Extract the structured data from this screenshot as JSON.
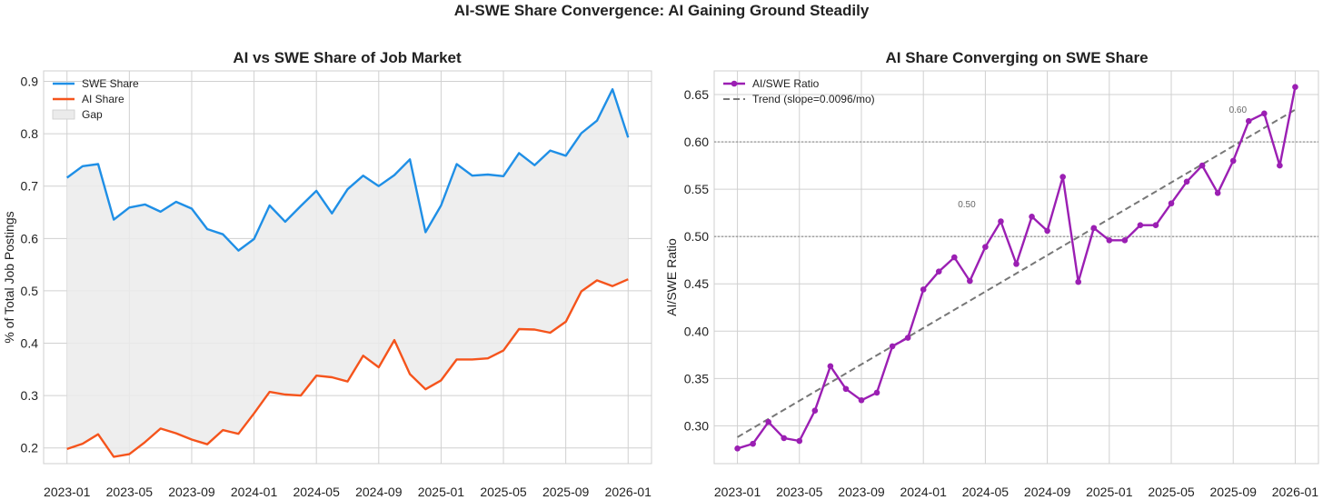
{
  "figure": {
    "suptitle": "AI-SWE Share Convergence: AI Gaining Ground Steadily"
  },
  "colors": {
    "swe": "#1f8fe6",
    "ai": "#f5541c",
    "gap": "#ebebeb",
    "ratio": "#9b1fb3",
    "trend": "#777777",
    "ref": "#8a8a8a",
    "grid": "#d0d0d0"
  },
  "chart_data": [
    {
      "type": "area",
      "title": "AI vs SWE Share of Job Market",
      "xlabel": "",
      "ylabel": "% of Total Job Postings",
      "ylim": [
        0.17,
        0.92
      ],
      "yticks": [
        0.2,
        0.3,
        0.4,
        0.5,
        0.6,
        0.7,
        0.8,
        0.9
      ],
      "ytick_labels": [
        "0.2",
        "0.3",
        "0.4",
        "0.5",
        "0.6",
        "0.7",
        "0.8",
        "0.9"
      ],
      "xlim": [
        -1.5,
        37.5
      ],
      "xticks": [
        0,
        4,
        8,
        12,
        16,
        20,
        24,
        28,
        32,
        36
      ],
      "xtick_labels": [
        "2023-01",
        "2023-05",
        "2023-09",
        "2024-01",
        "2024-05",
        "2024-09",
        "2025-01",
        "2025-05",
        "2025-09",
        "2026-01"
      ],
      "legend_position": "top-left",
      "legend": [
        "SWE Share",
        "AI Share",
        "Gap"
      ],
      "series": [
        {
          "name": "SWE Share",
          "values": [
            0.716,
            0.738,
            0.742,
            0.636,
            0.659,
            0.665,
            0.651,
            0.67,
            0.657,
            0.618,
            0.608,
            0.577,
            0.599,
            0.663,
            0.632,
            0.662,
            0.691,
            0.648,
            0.694,
            0.72,
            0.7,
            0.721,
            0.751,
            0.612,
            0.663,
            0.742,
            0.72,
            0.722,
            0.719,
            0.763,
            0.74,
            0.768,
            0.758,
            0.801,
            0.825,
            0.885,
            0.793
          ]
        },
        {
          "name": "AI Share",
          "values": [
            0.198,
            0.208,
            0.226,
            0.183,
            0.188,
            0.211,
            0.237,
            0.228,
            0.216,
            0.207,
            0.234,
            0.227,
            0.266,
            0.307,
            0.302,
            0.3,
            0.338,
            0.335,
            0.327,
            0.376,
            0.354,
            0.406,
            0.341,
            0.312,
            0.329,
            0.369,
            0.369,
            0.371,
            0.386,
            0.427,
            0.426,
            0.42,
            0.441,
            0.499,
            0.52,
            0.509,
            0.522
          ]
        }
      ]
    },
    {
      "type": "line",
      "title": "AI Share Converging on SWE Share",
      "xlabel": "",
      "ylabel": "AI/SWE Ratio",
      "ylim": [
        0.26,
        0.675
      ],
      "yticks": [
        0.3,
        0.35,
        0.4,
        0.45,
        0.5,
        0.55,
        0.6,
        0.65
      ],
      "ytick_labels": [
        "0.30",
        "0.35",
        "0.40",
        "0.45",
        "0.50",
        "0.55",
        "0.60",
        "0.65"
      ],
      "xlim": [
        -1.5,
        37.5
      ],
      "xticks": [
        0,
        4,
        8,
        12,
        16,
        20,
        24,
        28,
        32,
        36
      ],
      "xtick_labels": [
        "2023-01",
        "2023-05",
        "2023-09",
        "2024-01",
        "2024-05",
        "2024-09",
        "2025-01",
        "2025-05",
        "2025-09",
        "2026-01"
      ],
      "legend_position": "top-left",
      "legend": [
        "AI/SWE Ratio",
        "Trend (slope=0.0096/mo)"
      ],
      "series": [
        {
          "name": "AI/SWE Ratio",
          "values": [
            0.276,
            0.281,
            0.304,
            0.287,
            0.284,
            0.316,
            0.363,
            0.339,
            0.327,
            0.335,
            0.384,
            0.393,
            0.444,
            0.463,
            0.478,
            0.453,
            0.489,
            0.516,
            0.471,
            0.521,
            0.506,
            0.563,
            0.452,
            0.509,
            0.496,
            0.496,
            0.512,
            0.512,
            0.535,
            0.558,
            0.575,
            0.546,
            0.58,
            0.622,
            0.63,
            0.575,
            0.658
          ]
        }
      ],
      "trend": {
        "name": "Trend (slope=0.0096/mo)",
        "start": 0.288,
        "end": 0.634,
        "x0": 0,
        "x1": 36
      },
      "reference_lines": [
        {
          "y": 0.5,
          "label": "0.50",
          "label_x": 14.8
        },
        {
          "y": 0.6,
          "label": "0.60",
          "label_x": 32.3
        }
      ]
    }
  ]
}
